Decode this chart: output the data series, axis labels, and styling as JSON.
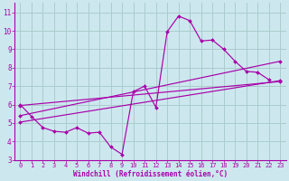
{
  "xlabel": "Windchill (Refroidissement éolien,°C)",
  "bg_color": "#cce8ee",
  "grid_color": "#aacccc",
  "line_color": "#aa00aa",
  "xlim": [
    -0.5,
    23.5
  ],
  "ylim": [
    3,
    11.5
  ],
  "xtick_vals": [
    0,
    1,
    2,
    3,
    4,
    5,
    6,
    7,
    8,
    9,
    10,
    11,
    12,
    13,
    14,
    15,
    16,
    17,
    18,
    19,
    20,
    21,
    22,
    23
  ],
  "ytick_vals": [
    3,
    4,
    5,
    6,
    7,
    8,
    9,
    10,
    11
  ],
  "series_zigzag": {
    "x": [
      0,
      1,
      2,
      3,
      4,
      5,
      6,
      7,
      8,
      9,
      10,
      11,
      12,
      13,
      14,
      15,
      16,
      17,
      18,
      19,
      20,
      21,
      22
    ],
    "y": [
      6.0,
      5.35,
      4.75,
      4.55,
      4.5,
      4.75,
      4.45,
      4.5,
      3.7,
      3.3,
      6.7,
      7.0,
      5.85,
      9.95,
      10.8,
      10.55,
      9.45,
      9.5,
      9.0,
      8.35,
      7.8,
      7.75,
      7.35
    ]
  },
  "series_line1": {
    "x": [
      0,
      23
    ],
    "y": [
      5.95,
      7.25
    ]
  },
  "series_line2": {
    "x": [
      0,
      23
    ],
    "y": [
      5.4,
      8.35
    ]
  },
  "series_line3": {
    "x": [
      0,
      23
    ],
    "y": [
      5.05,
      7.3
    ]
  }
}
